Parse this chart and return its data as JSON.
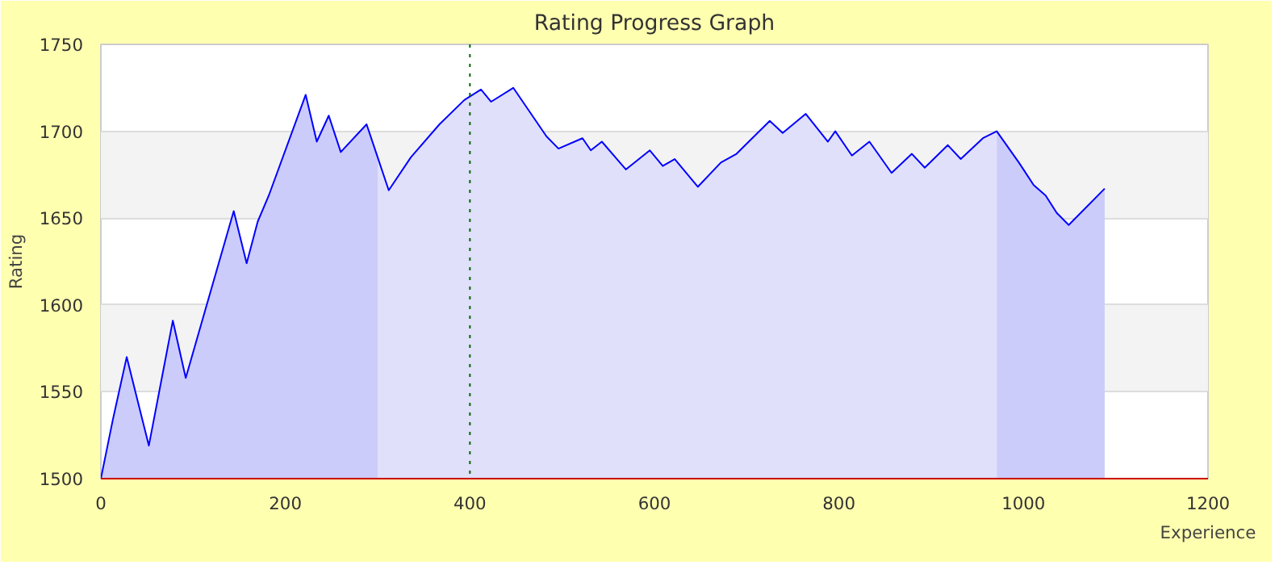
{
  "chart_data": {
    "type": "line",
    "title": "Rating Progress Graph",
    "xlabel": "Experience",
    "ylabel": "Rating",
    "xlim": [
      0,
      1200
    ],
    "ylim": [
      1500,
      1750
    ],
    "xticks": [
      0,
      200,
      400,
      600,
      800,
      1000,
      1200
    ],
    "yticks": [
      1500,
      1550,
      1600,
      1650,
      1700,
      1750
    ],
    "grid": "y",
    "series": [
      {
        "type": "area",
        "color": "#ccccfa",
        "x": [
          0,
          13,
          28,
          52,
          78,
          92,
          144,
          158,
          170,
          182,
          222,
          234,
          247,
          260,
          288,
          300
        ],
        "values": [
          1500,
          1534,
          1570,
          1519,
          1591,
          1558,
          1654,
          1624,
          1648,
          1663,
          1721,
          1694,
          1709,
          1688,
          1704,
          1685
        ]
      },
      {
        "type": "area",
        "color": "#e0e0fa",
        "x": [
          300,
          312,
          336,
          367,
          394,
          412,
          423,
          447,
          483,
          496,
          522,
          531,
          543,
          569,
          595,
          609,
          622,
          647,
          672,
          689,
          725,
          739,
          764,
          788,
          796,
          814,
          833,
          857,
          879,
          893,
          918,
          932,
          956,
          971
        ],
        "values": [
          1685,
          1666,
          1685,
          1704,
          1718,
          1724,
          1717,
          1725,
          1697,
          1690,
          1696,
          1689,
          1694,
          1678,
          1689,
          1680,
          1684,
          1668,
          1682,
          1687,
          1706,
          1699,
          1710,
          1694,
          1700,
          1686,
          1694,
          1676,
          1687,
          1679,
          1692,
          1684,
          1696,
          1700
        ]
      },
      {
        "type": "area",
        "color": "#ccccfa",
        "x": [
          971,
          995,
          1011,
          1024,
          1036,
          1049,
          1088
        ],
        "values": [
          1700,
          1682,
          1669,
          1663,
          1653,
          1646,
          1667
        ]
      },
      {
        "color": "#0000ff",
        "x": [
          0,
          13,
          28,
          52,
          78,
          92,
          144,
          158,
          170,
          182,
          222,
          234,
          247,
          260,
          288,
          300,
          312,
          336,
          367,
          394,
          412,
          423,
          447,
          483,
          496,
          522,
          531,
          543,
          569,
          595,
          609,
          622,
          647,
          672,
          689,
          725,
          739,
          764,
          788,
          796,
          814,
          833,
          857,
          879,
          893,
          918,
          932,
          956,
          971,
          995,
          1011,
          1024,
          1036,
          1049,
          1088
        ],
        "values": [
          1500,
          1534,
          1570,
          1519,
          1591,
          1558,
          1654,
          1624,
          1648,
          1663,
          1721,
          1694,
          1709,
          1688,
          1704,
          1685,
          1666,
          1685,
          1704,
          1718,
          1724,
          1717,
          1725,
          1697,
          1690,
          1696,
          1689,
          1694,
          1678,
          1689,
          1680,
          1684,
          1668,
          1682,
          1687,
          1706,
          1699,
          1710,
          1694,
          1700,
          1686,
          1694,
          1676,
          1687,
          1679,
          1692,
          1684,
          1696,
          1700,
          1682,
          1669,
          1663,
          1653,
          1646,
          1667
        ]
      }
    ],
    "ref_lines": [
      {
        "axis": "x",
        "value": 400,
        "color": "#006600",
        "line_style": "dotted"
      }
    ]
  }
}
